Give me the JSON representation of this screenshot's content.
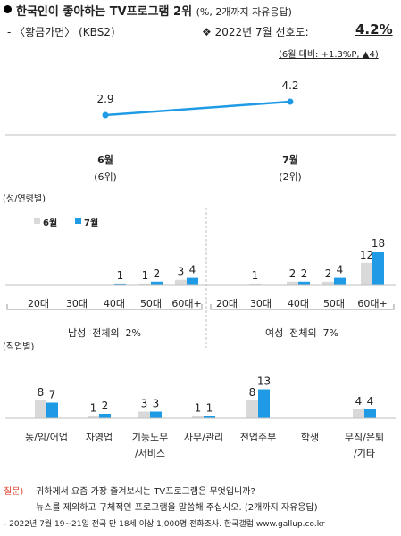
{
  "header": {
    "title": "한국인이 좋아하는 TV프로그램 2위",
    "title_note": "(%, 2개까지 자유응답)",
    "program": "- 〈황금가면〉 (KBS2)",
    "rating_label": "❖ 2022년 7월 선호도:",
    "rating_value": "4.2%",
    "rating_change": "(6월 대비: +1.3%P, ▲4)"
  },
  "trend": {
    "points": [
      {
        "label": "6월",
        "sub": "(6위)",
        "value_label": "2.9"
      },
      {
        "label": "7월",
        "sub": "(2위)",
        "value_label": "4.2"
      }
    ]
  },
  "demo": {
    "section_label": "(성/연령별)",
    "legend": {
      "june": "6월",
      "july": "7월"
    },
    "male_label": "남성  전체의  2%",
    "female_label": "여성  전체의  7%"
  },
  "job": {
    "section_label": "(직업별)"
  },
  "footer": {
    "question_tag": "질문)",
    "question_line1": "귀하께서 요즘 가장 즐겨보시는 TV프로그램은 무엇입니까?",
    "question_line2": "뉴스를 제외하고 구체적인 프로그램을 말씀해 주십시오. (2개까지 자유응답)",
    "source": "- 2022년 7월 19~21일 전국 만 18세 이상 1,000명 전화조사. 한국갤럽 www.gallup.co.kr"
  },
  "colors": {
    "june": "#d9d9d9",
    "july": "#1f9be6",
    "line": "#1f9be6"
  },
  "chart_data": [
    {
      "type": "line",
      "categories": [
        "6월",
        "7월"
      ],
      "values": [
        2.9,
        4.2
      ],
      "value_labels": [
        "2.9",
        "4.2"
      ]
    },
    {
      "type": "bar",
      "categories": [
        "20대",
        "30대",
        "40대",
        "50대",
        "60대+",
        "20대",
        "30대",
        "40대",
        "50대",
        "60대+"
      ],
      "groups": [
        "남성  전체의  2%",
        "여성  전체의  7%"
      ],
      "series": [
        {
          "name": "6월",
          "values": [
            0,
            0,
            0,
            1,
            3,
            0,
            1,
            2,
            2,
            12
          ],
          "labels": [
            "",
            "",
            "",
            "1",
            "3",
            "",
            "1",
            "2",
            "2",
            "12"
          ]
        },
        {
          "name": "7월",
          "values": [
            0,
            0,
            1,
            2,
            4,
            0,
            0,
            2,
            4,
            18
          ],
          "labels": [
            "",
            "",
            "1",
            "2",
            "4",
            "",
            "",
            "2",
            "4",
            "18"
          ]
        }
      ]
    },
    {
      "type": "bar",
      "categories": [
        "농/임/어업",
        "자영업",
        "기능노무\n/서비스",
        "사무/관리",
        "전업주부",
        "학생",
        "무직/은퇴\n/기타"
      ],
      "series": [
        {
          "name": "6월",
          "values": [
            8,
            1,
            3,
            1,
            8,
            0,
            4
          ],
          "labels": [
            "8",
            "1",
            "3",
            "1",
            "8",
            "",
            "4"
          ]
        },
        {
          "name": "7월",
          "values": [
            7,
            2,
            3,
            1,
            13,
            0,
            4
          ],
          "labels": [
            "7",
            "2",
            "3",
            "1",
            "13",
            "",
            "4"
          ]
        }
      ]
    }
  ]
}
